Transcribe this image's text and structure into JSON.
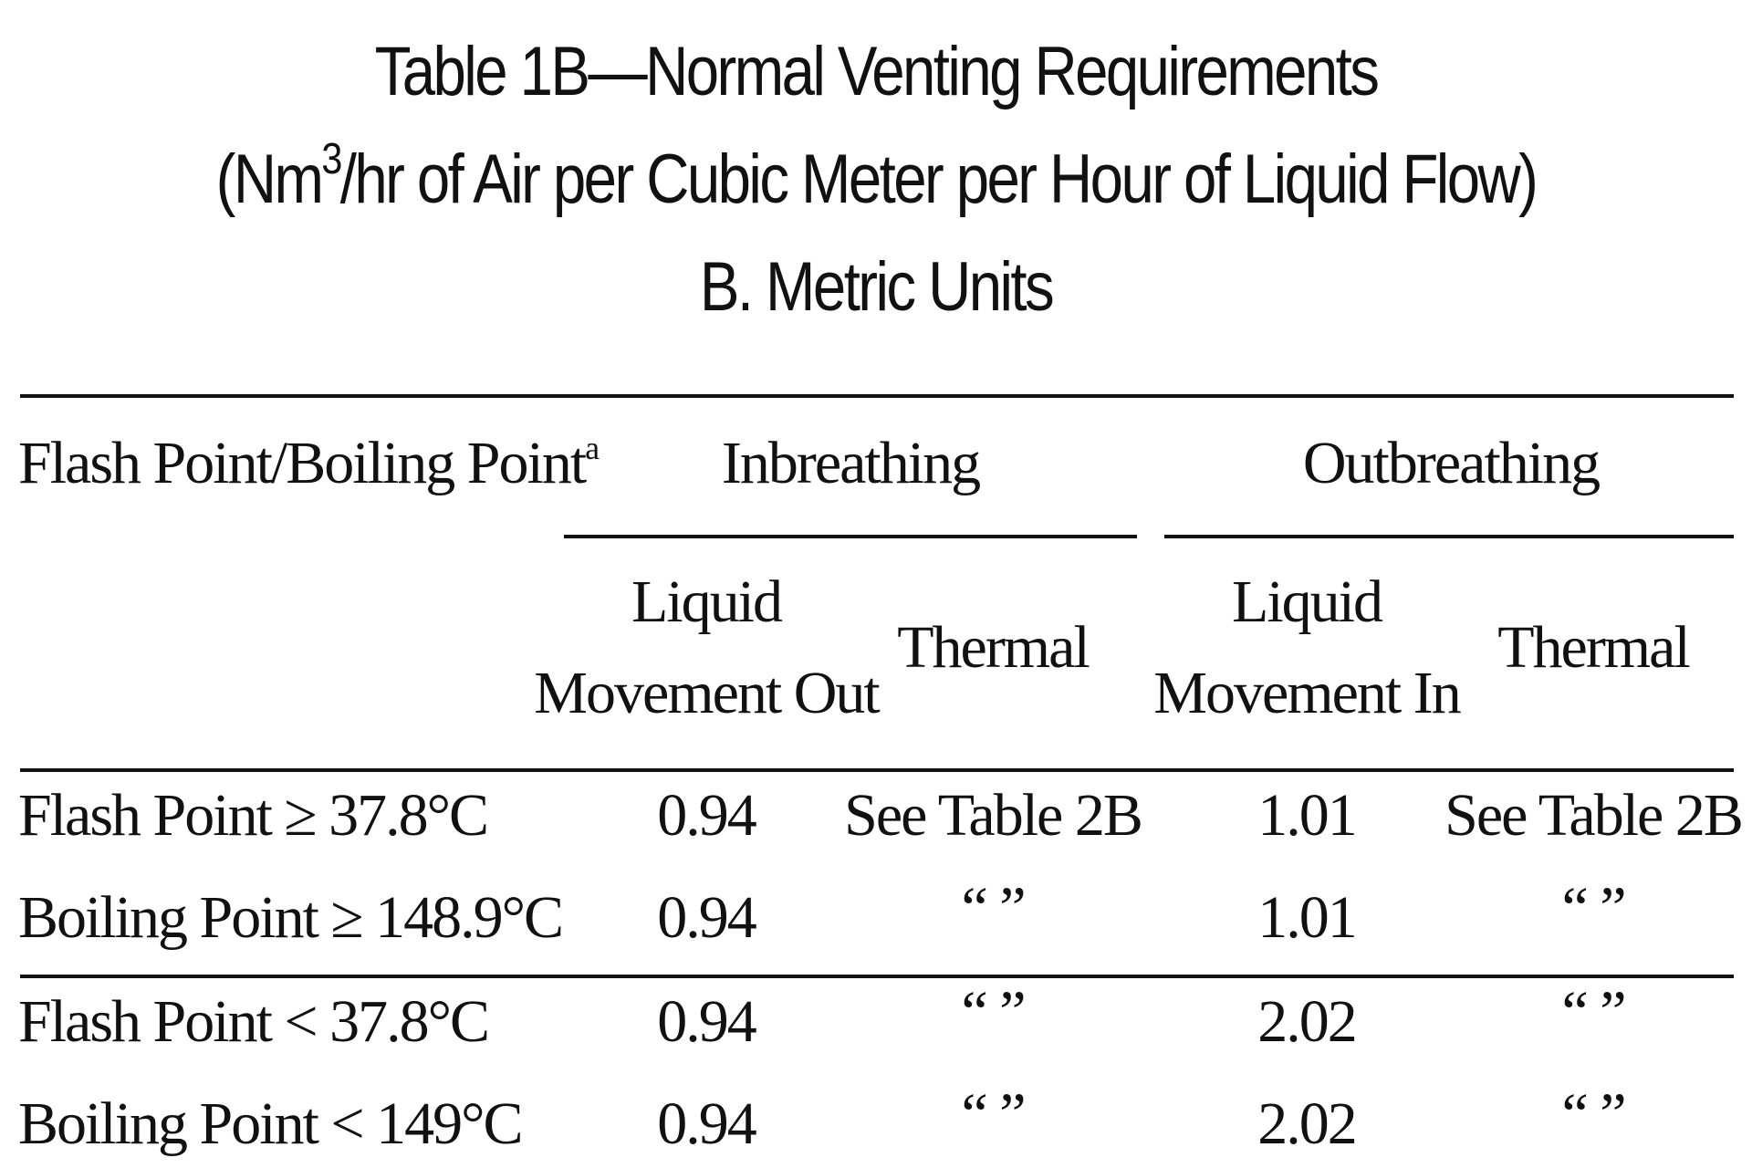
{
  "title": {
    "line1": "Table  1B—Normal Venting Requirements",
    "line2_pre": "(Nm",
    "line2_sup": "3",
    "line2_post": "/hr of Air per Cubic Meter per Hour of Liquid Flow)",
    "line3": "B. Metric Units"
  },
  "table": {
    "header": {
      "first_col": "Flash Point/Boiling Point",
      "first_col_sup": "a",
      "group_inbreathing": "Inbreathing",
      "group_outbreathing": "Outbreathing",
      "in_liquid_line1": "Liquid",
      "in_liquid_line2": "Movement Out",
      "in_thermal": "Thermal",
      "out_liquid_line1": "Liquid",
      "out_liquid_line2": "Movement In",
      "out_thermal": "Thermal"
    },
    "rows": [
      {
        "label": "Flash Point ≥ 37.8°C",
        "in_liquid": "0.94",
        "in_thermal": "See Table 2B",
        "out_liquid": "1.01",
        "out_thermal": "See Table 2B"
      },
      {
        "label": "Boiling Point ≥ 148.9°C",
        "in_liquid": "0.94",
        "in_thermal": "“ ”",
        "out_liquid": "1.01",
        "out_thermal": "“ ”"
      },
      {
        "label": "Flash Point < 37.8°C",
        "in_liquid": "0.94",
        "in_thermal": "“ ”",
        "out_liquid": "2.02",
        "out_thermal": "“ ”"
      },
      {
        "label": "Boiling Point < 149°C",
        "in_liquid": "0.94",
        "in_thermal": "“ ”",
        "out_liquid": "2.02",
        "out_thermal": "“ ”"
      }
    ]
  }
}
